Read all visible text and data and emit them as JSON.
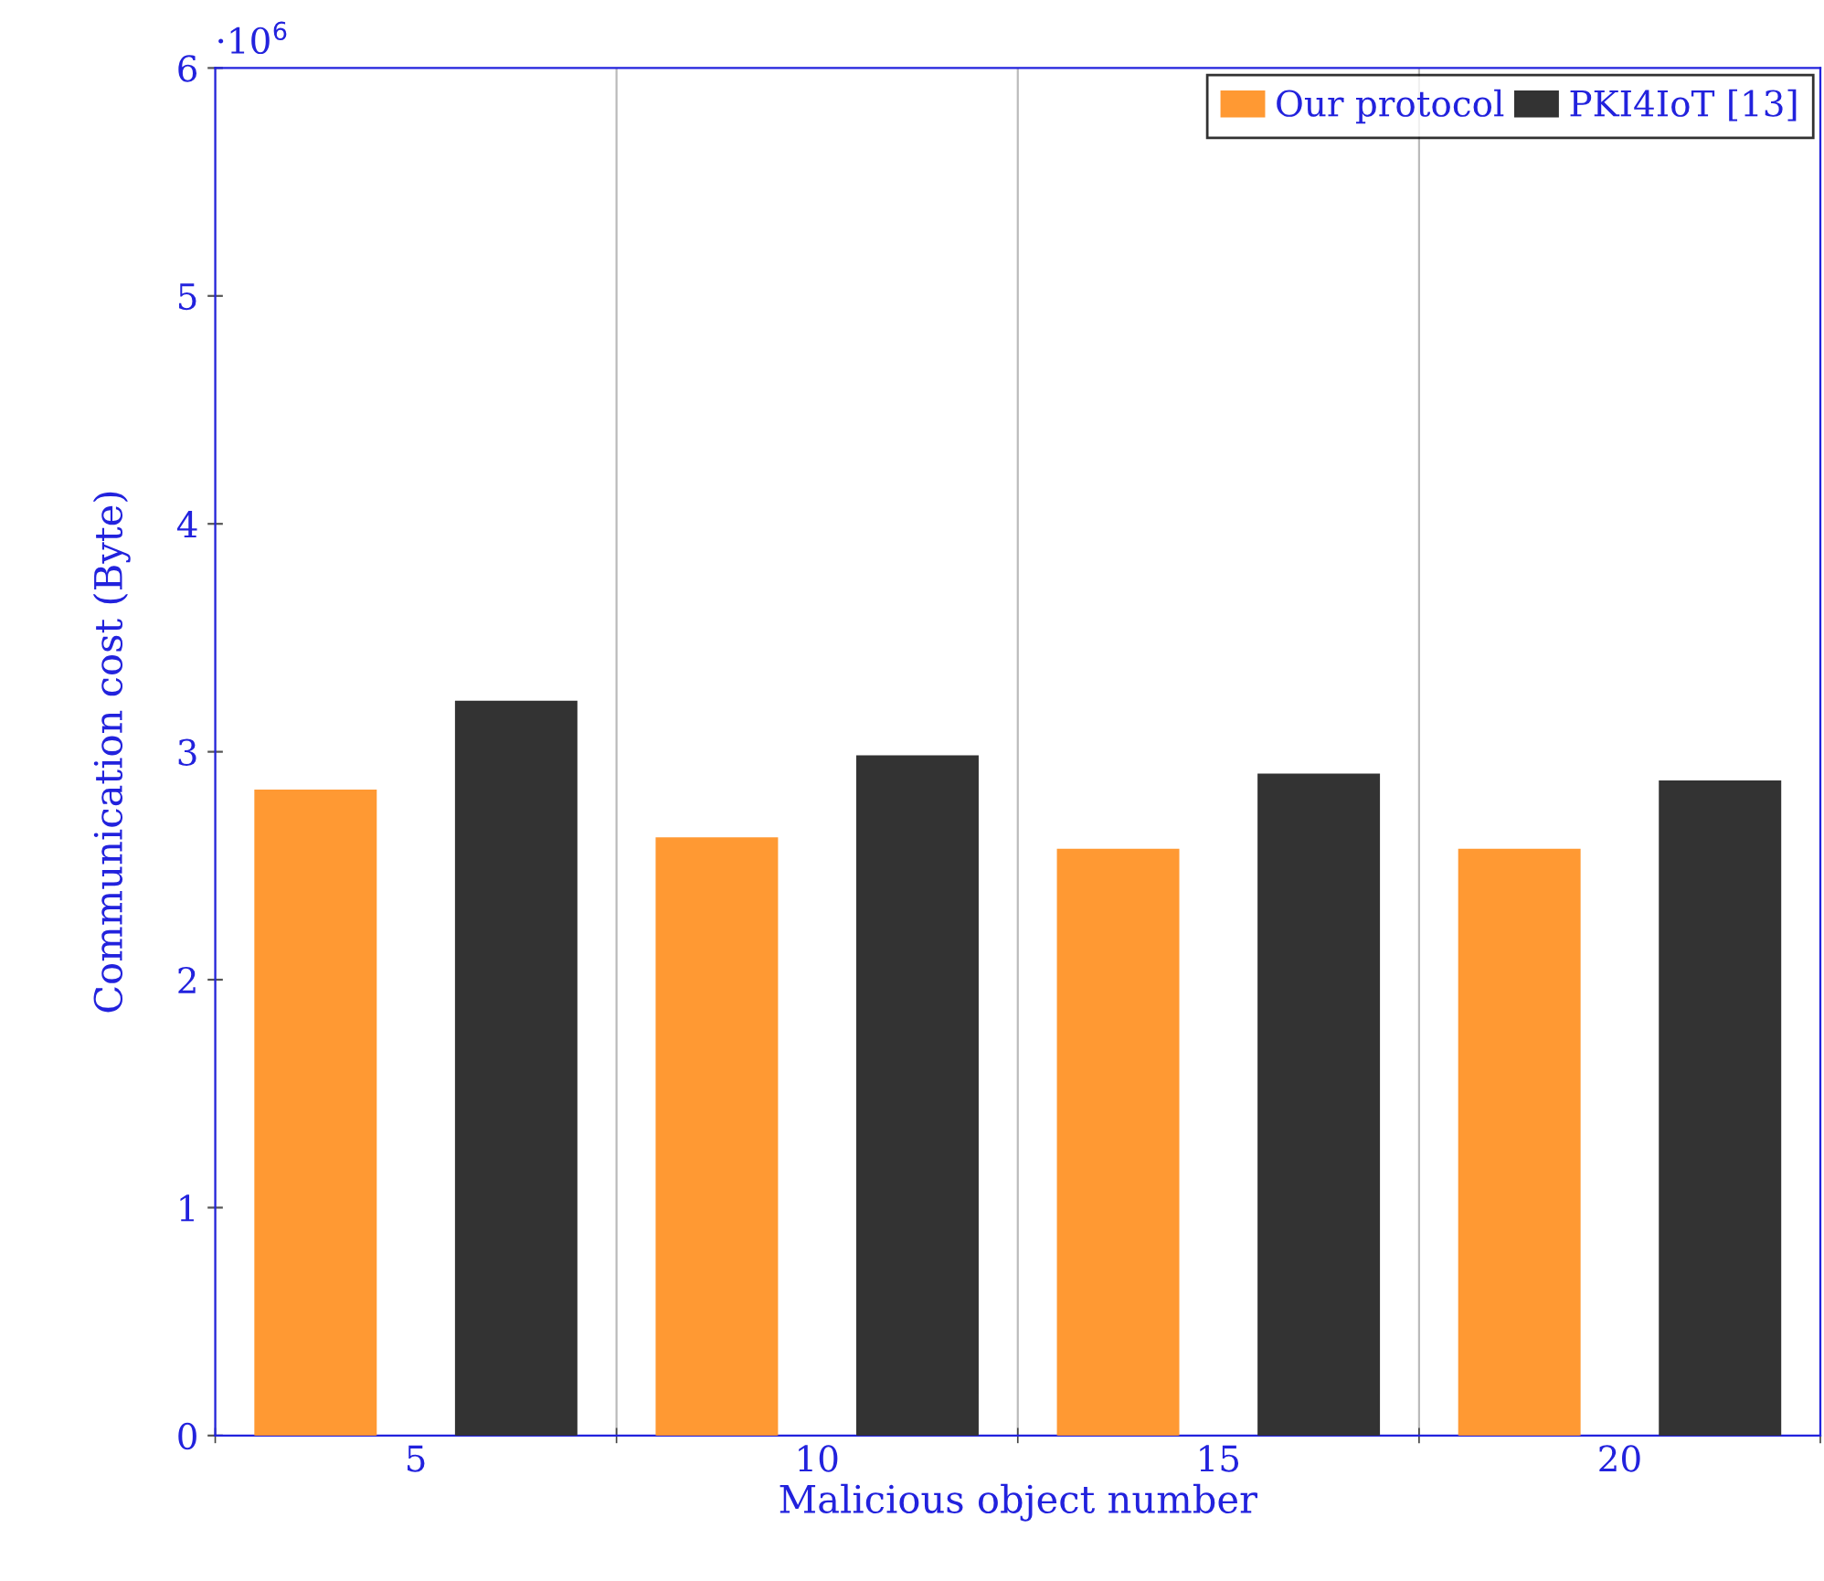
{
  "chart_data": {
    "type": "bar",
    "xlabel": "Malicious object number",
    "ylabel": "Communication cost (Byte)",
    "categories": [
      "5",
      "10",
      "15",
      "20"
    ],
    "series": [
      {
        "name": "Our protocol",
        "color": "#ff9933",
        "values": [
          2.83,
          2.62,
          2.57,
          2.57
        ]
      },
      {
        "name": "PKI4IoT [13]",
        "color": "#333333",
        "values": [
          3.22,
          2.98,
          2.9,
          2.87
        ]
      }
    ],
    "ylim": [
      0,
      6
    ],
    "yticks": [
      0,
      1,
      2,
      3,
      4,
      5,
      6
    ],
    "annotations": [
      "·10$^{6}$"
    ],
    "grid": "x",
    "legend": "top right"
  }
}
